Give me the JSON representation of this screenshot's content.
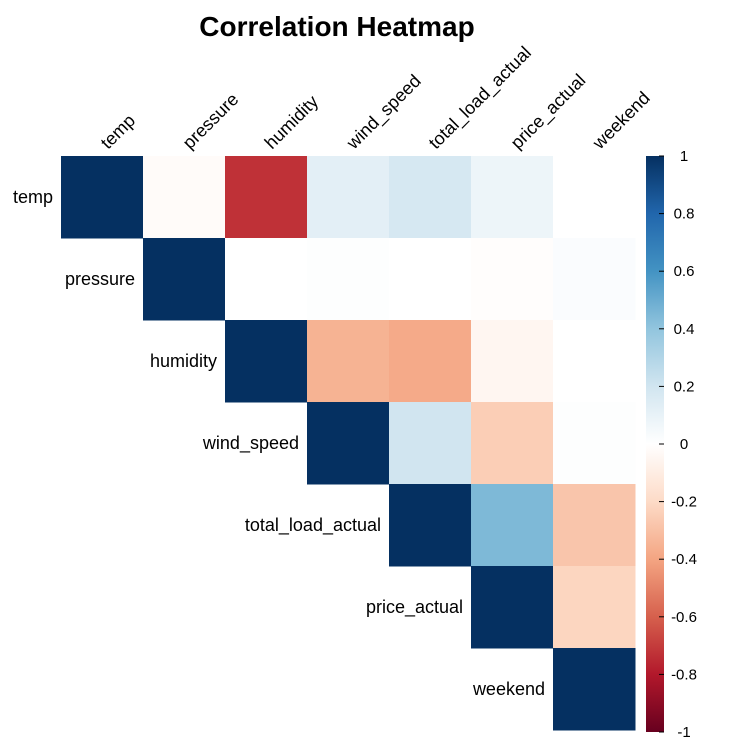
{
  "chart_data": {
    "type": "heatmap",
    "title": "Correlation Heatmap",
    "variables": [
      "temp",
      "pressure",
      "humidity",
      "wind_speed",
      "total_load_actual",
      "price_actual",
      "weekend"
    ],
    "matrix_type": "upper",
    "values": [
      [
        1.0,
        -0.02,
        -0.73,
        0.12,
        0.18,
        0.08,
        0.0
      ],
      [
        null,
        1.0,
        0.0,
        0.01,
        0.0,
        -0.01,
        0.02
      ],
      [
        null,
        null,
        1.0,
        -0.35,
        -0.38,
        -0.05,
        0.0
      ],
      [
        null,
        null,
        null,
        1.0,
        0.2,
        -0.25,
        0.01
      ],
      [
        null,
        null,
        null,
        null,
        1.0,
        0.45,
        -0.28
      ],
      [
        null,
        null,
        null,
        null,
        null,
        1.0,
        -0.22
      ],
      [
        null,
        null,
        null,
        null,
        null,
        null,
        1.0
      ]
    ],
    "colorbar": {
      "range": [
        -1,
        1
      ],
      "ticks": [
        1,
        0.8,
        0.6,
        0.4,
        0.2,
        0,
        -0.2,
        -0.4,
        -0.6,
        -0.8,
        -1
      ],
      "tick_labels": [
        "1",
        "0.8",
        "0.6",
        "0.4",
        "0.2",
        "0",
        "-0.2",
        "-0.4",
        "-0.6",
        "-0.8",
        "-1"
      ],
      "colors": [
        "#67001F",
        "#B2182B",
        "#D6604D",
        "#F4A582",
        "#FDDBC7",
        "#FFFFFF",
        "#D1E5F0",
        "#92C5DE",
        "#4393C3",
        "#2166AC",
        "#053061"
      ]
    }
  }
}
